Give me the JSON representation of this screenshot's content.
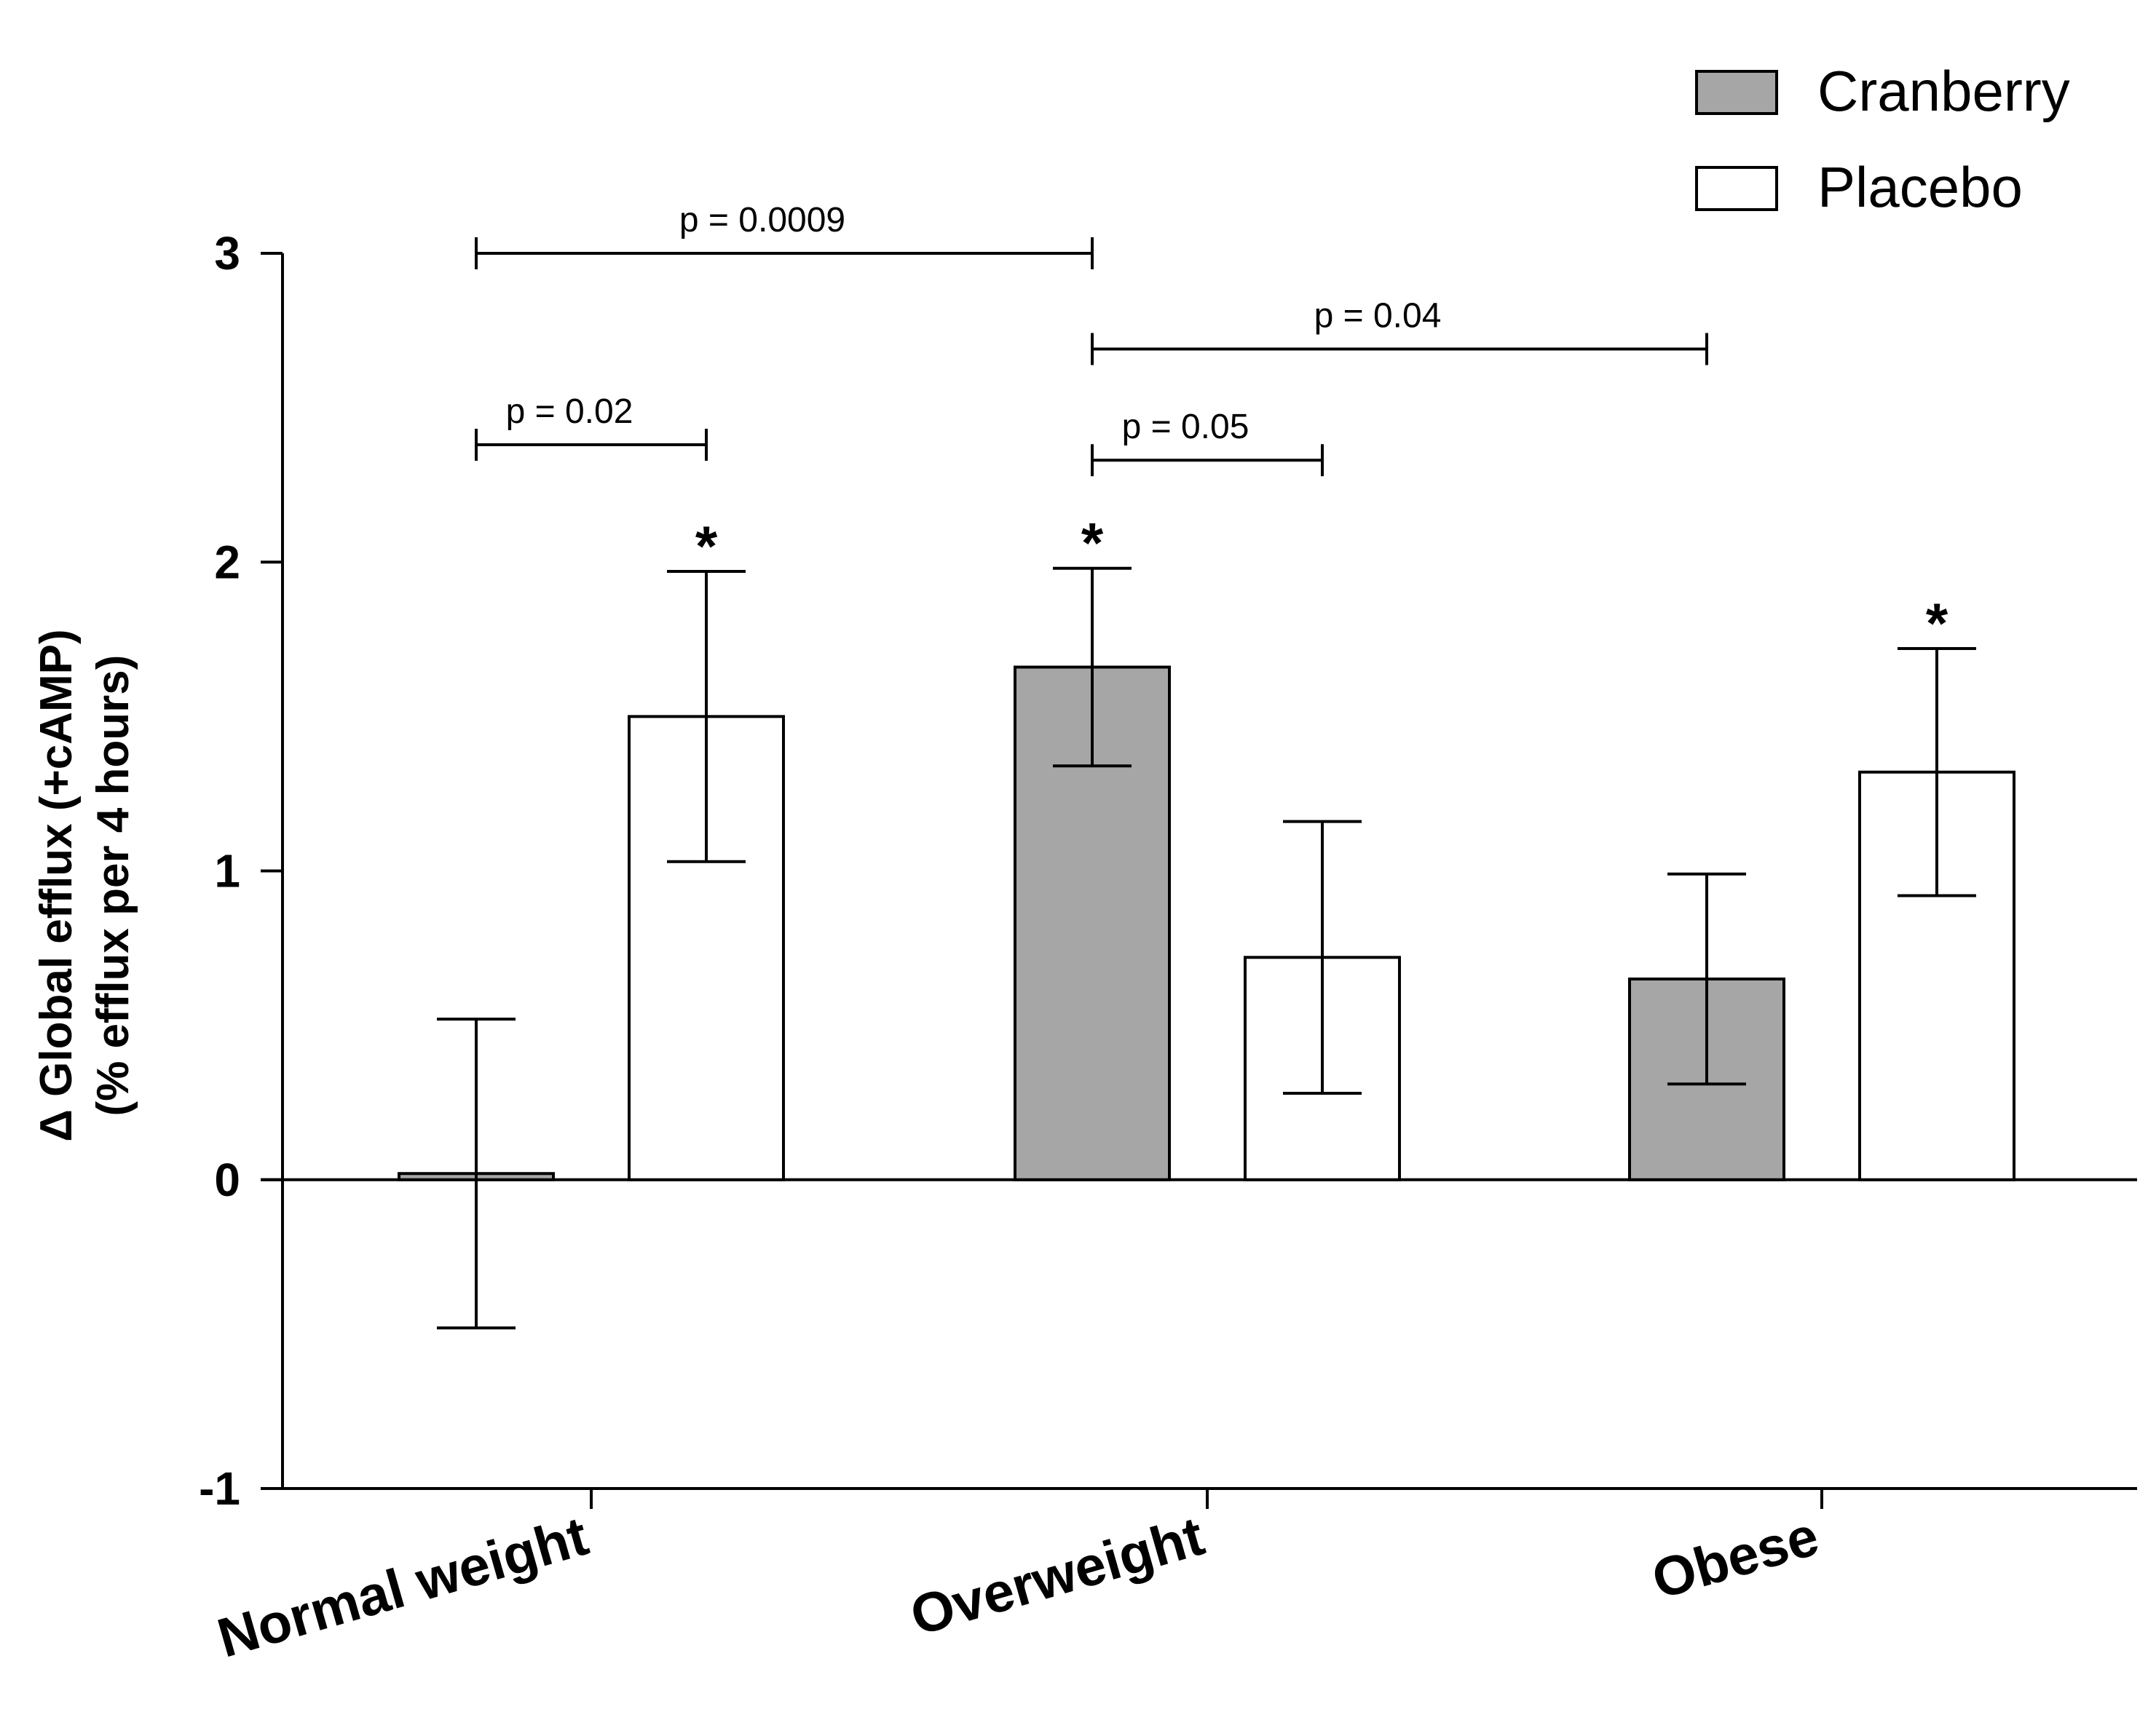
{
  "chart_data": {
    "type": "bar",
    "categories": [
      "Normal weight",
      "Overweight",
      "Obese"
    ],
    "series": [
      {
        "name": "Cranberry",
        "color": "#a6a6a6",
        "values": [
          0.02,
          1.66,
          0.65
        ],
        "errors": [
          0.5,
          0.32,
          0.34
        ]
      },
      {
        "name": "Placebo",
        "color": "#ffffff",
        "values": [
          1.5,
          0.72,
          1.32
        ],
        "errors": [
          0.47,
          0.44,
          0.4
        ]
      }
    ],
    "title": "",
    "xlabel": "",
    "ylabel_lines": [
      "Δ Global efflux (+cAMP)",
      "(% efflux per 4 hours)"
    ],
    "ylim": [
      -1,
      3
    ],
    "yticks": [
      "-1",
      "0",
      "1",
      "2",
      "3"
    ],
    "grid": false,
    "legend_placement": "top-right",
    "significance_stars": [
      {
        "category": 0,
        "series": 1,
        "label": "*"
      },
      {
        "category": 1,
        "series": 0,
        "label": "*"
      },
      {
        "category": 2,
        "series": 1,
        "label": "*"
      }
    ],
    "comparisons": [
      {
        "label": "p = 0.0009",
        "from": {
          "category": 0,
          "series": 0
        },
        "to": {
          "category": 1,
          "series": 0
        },
        "y": 3.0
      },
      {
        "label": "p = 0.04",
        "from": {
          "category": 1,
          "series": 0
        },
        "to": {
          "category": 2,
          "series": 0
        },
        "y": 2.69
      },
      {
        "label": "p = 0.02",
        "from": {
          "category": 0,
          "series": 0
        },
        "to": {
          "category": 0,
          "series": 1
        },
        "y": 2.38
      },
      {
        "label": "p = 0.05",
        "from": {
          "category": 1,
          "series": 0
        },
        "to": {
          "category": 1,
          "series": 1
        },
        "y": 2.33
      }
    ]
  }
}
